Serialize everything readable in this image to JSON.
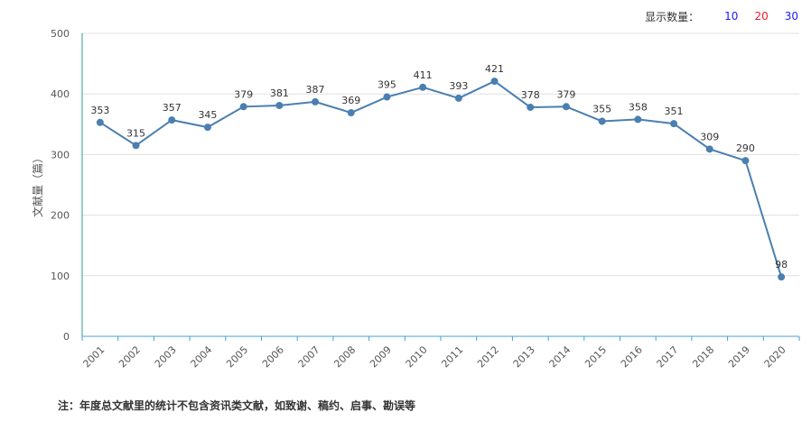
{
  "controls": {
    "label": "显示数量：",
    "options": [
      {
        "text": "10",
        "color": "#1a1aff"
      },
      {
        "text": "20",
        "color": "#e8202a"
      },
      {
        "text": "30",
        "color": "#1a1aff"
      }
    ]
  },
  "note": "注：年度总文献里的统计不包含资讯类文献，如致谢、稿约、启事、勘误等",
  "chart_data": {
    "type": "line",
    "title": "",
    "xlabel": "",
    "ylabel": "文献量（篇）",
    "ylim": [
      0,
      500
    ],
    "yticks": [
      0,
      100,
      200,
      300,
      400,
      500
    ],
    "grid": true,
    "categories": [
      "2001",
      "2002",
      "2003",
      "2004",
      "2005",
      "2006",
      "2007",
      "2008",
      "2009",
      "2010",
      "2011",
      "2012",
      "2013",
      "2014",
      "2015",
      "2016",
      "2017",
      "2018",
      "2019",
      "2020"
    ],
    "series": [
      {
        "values": [
          353,
          315,
          357,
          345,
          379,
          381,
          387,
          369,
          395,
          411,
          393,
          421,
          378,
          379,
          355,
          358,
          351,
          309,
          290,
          98
        ]
      }
    ],
    "colors": {
      "line": "#4a7fb0",
      "axis": "#2a9d8f",
      "grid": "#e0e0e0",
      "text": "#555555"
    }
  }
}
